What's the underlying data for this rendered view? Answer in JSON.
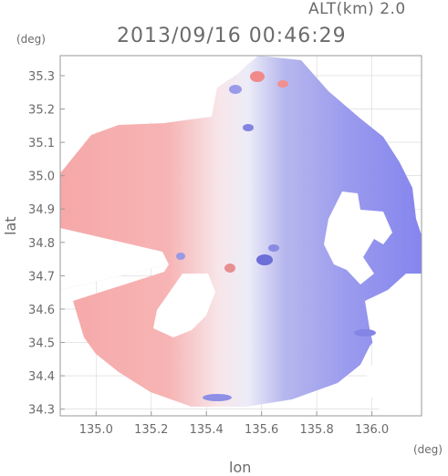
{
  "header": {
    "altitude_label": "ALT(km) 2.0",
    "timestamp": "2013/09/16 00:46:29"
  },
  "colors": {
    "positive": "#f4a3a3",
    "negative": "#8c8cf0",
    "neutral": "#f2f2fa",
    "grid": "#d8d8d8"
  },
  "chart_data": {
    "type": "heatmap",
    "description_units": "radar doppler velocity map",
    "xlabel": "lon",
    "ylabel": "lat",
    "x_unit": "(deg)",
    "y_unit": "(deg)",
    "xlim": [
      134.87,
      136.18
    ],
    "ylim": [
      34.28,
      35.36
    ],
    "x_ticks": [
      "135.0",
      "135.2",
      "135.4",
      "135.6",
      "135.8",
      "136.0"
    ],
    "x_tick_values": [
      135.0,
      135.2,
      135.4,
      135.6,
      135.8,
      136.0
    ],
    "y_ticks": [
      "34.3",
      "34.4",
      "34.5",
      "34.6",
      "34.7",
      "34.8",
      "34.9",
      "35.0",
      "35.1",
      "35.2",
      "35.3"
    ],
    "y_tick_values": [
      34.3,
      34.4,
      34.5,
      34.6,
      34.7,
      34.8,
      34.9,
      35.0,
      35.1,
      35.2,
      35.3
    ],
    "radar_center": [
      135.52,
      34.72
    ],
    "grid": true
  }
}
